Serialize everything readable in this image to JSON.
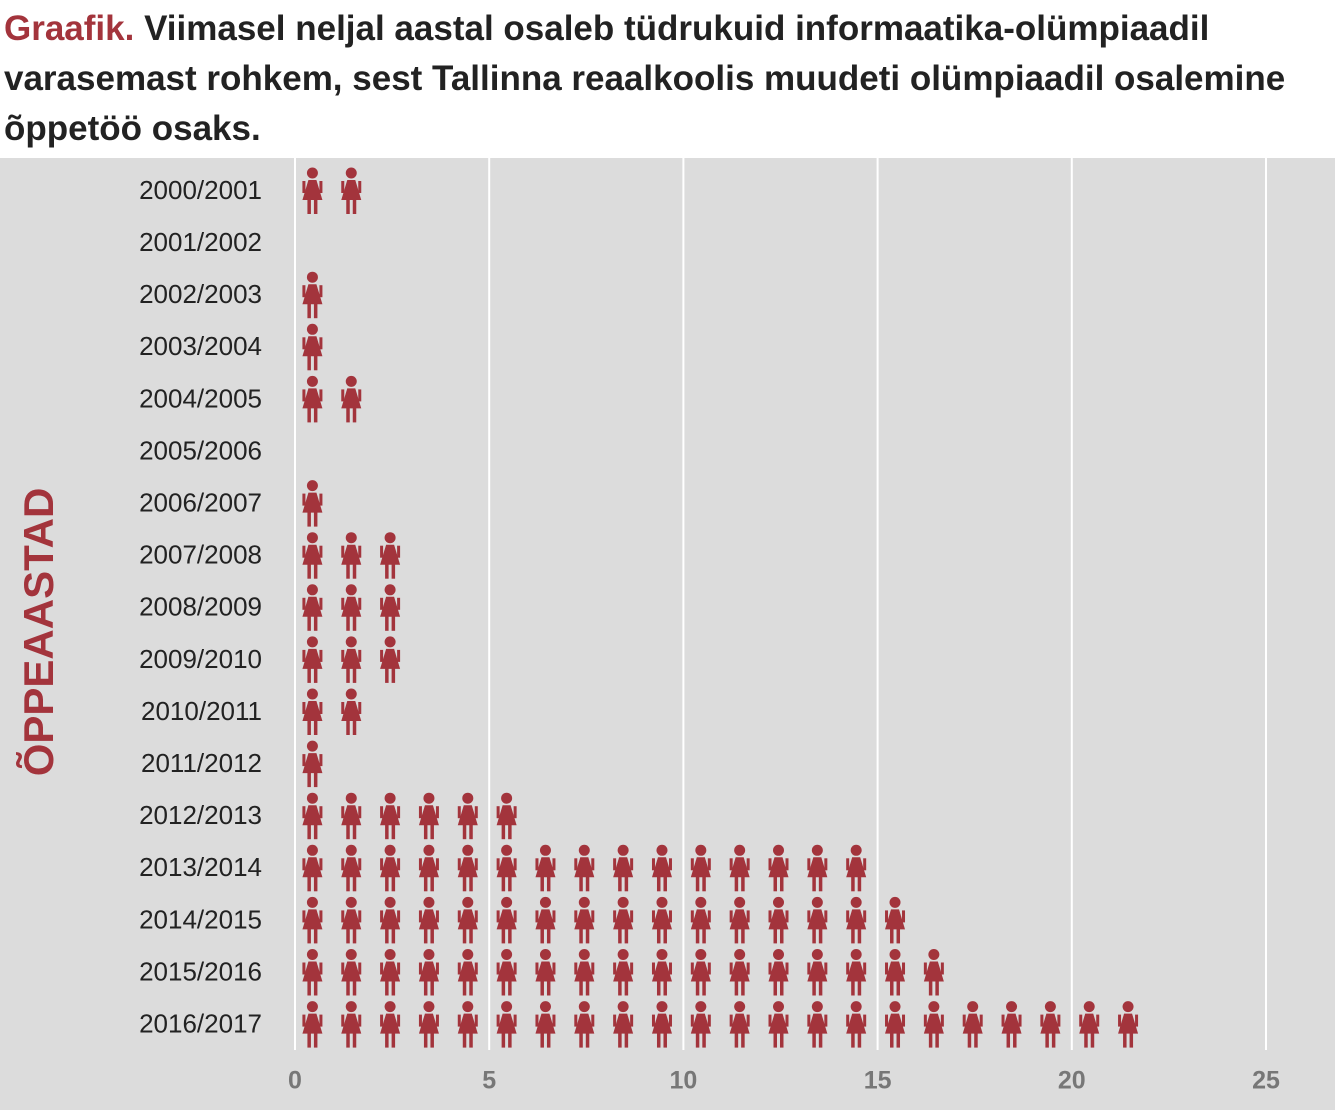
{
  "chart_data": {
    "type": "pictogram",
    "title_prefix": "Graafik.",
    "title": "Viimasel neljal aastal osaleb tüdrukuid informaatika-olümpiaadil varasemast rohkem, sest Tallinna reaalkoolis muudeti olümpiaadil osalemine õppetöö osaks.",
    "y_label": "ÕPPEAASTAD",
    "categories": [
      "2000/2001",
      "2001/2002",
      "2002/2003",
      "2003/2004",
      "2004/2005",
      "2005/2006",
      "2006/2007",
      "2007/2008",
      "2008/2009",
      "2009/2010",
      "2010/2011",
      "2011/2012",
      "2012/2013",
      "2013/2014",
      "2014/2015",
      "2015/2016",
      "2016/2017"
    ],
    "values": [
      2,
      0,
      1,
      1,
      2,
      0,
      1,
      3,
      3,
      3,
      2,
      1,
      6,
      15,
      16,
      17,
      22
    ],
    "color": "#a3343c",
    "xlim": [
      0,
      25
    ],
    "xticks": [
      0,
      5,
      10,
      15,
      20,
      25
    ],
    "grid": true
  }
}
